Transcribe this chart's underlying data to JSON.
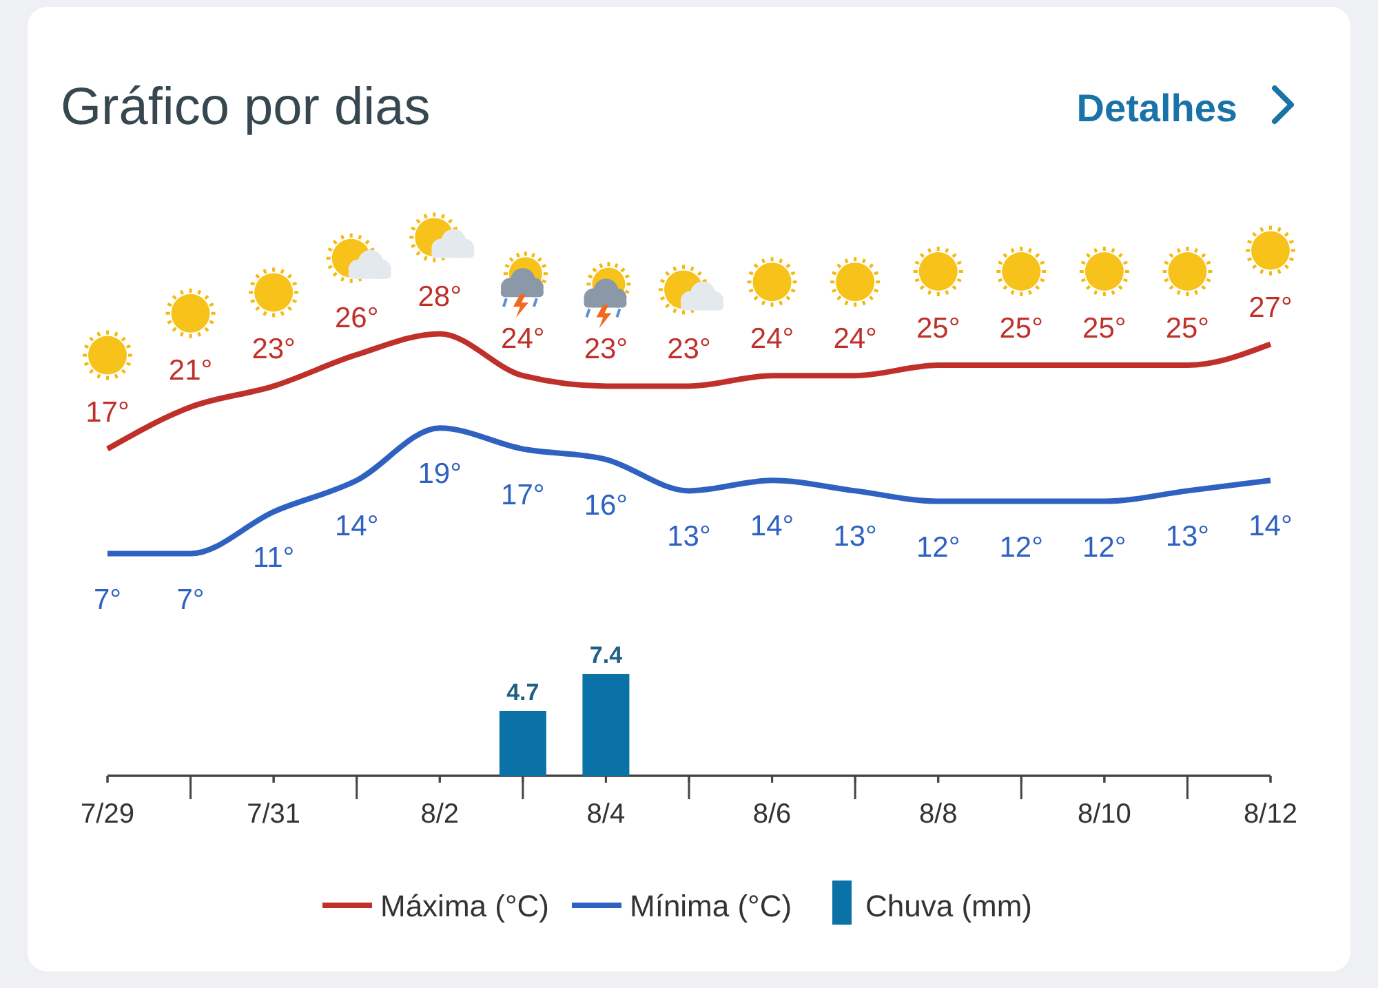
{
  "chart_data": [
    {
      "type": "line",
      "title": "Gráfico por dias",
      "annotations": [
        "Detalhes"
      ],
      "categories": [
        "7/29",
        null,
        "7/31",
        null,
        "8/2",
        null,
        "8/4",
        null,
        "8/6",
        null,
        "8/8",
        null,
        "8/10",
        null,
        "8/12"
      ],
      "series": [
        {
          "name": "Máxima (°C)",
          "color": "#c0302a",
          "values": [
            17,
            21,
            23,
            26,
            28,
            24,
            23,
            23,
            24,
            24,
            25,
            25,
            25,
            25,
            27
          ],
          "value_labels": [
            "17°",
            "21°",
            "23°",
            "26°",
            "28°",
            "24°",
            "23°",
            "23°",
            "24°",
            "24°",
            "25°",
            "25°",
            "25°",
            "25°",
            "27°"
          ]
        },
        {
          "name": "Mínima (°C)",
          "color": "#2f62c0",
          "values": [
            7,
            7,
            11,
            14,
            19,
            17,
            16,
            13,
            14,
            13,
            12,
            12,
            12,
            13,
            14
          ],
          "value_labels": [
            "7°",
            "7°",
            "11°",
            "14°",
            "19°",
            "17°",
            "16°",
            "13°",
            "14°",
            "13°",
            "12°",
            "12°",
            "12°",
            "13°",
            "14°"
          ]
        }
      ],
      "legend": "bottom",
      "marker": "none"
    },
    {
      "type": "bar",
      "categories": [
        null,
        null,
        null,
        null,
        null,
        null,
        null,
        null,
        null,
        null,
        null,
        null,
        null,
        null,
        null
      ],
      "series": [
        {
          "name": "Chuva (mm)",
          "color": "#0a72a6",
          "values": [
            null,
            null,
            null,
            null,
            null,
            4.7,
            7.4,
            null,
            null,
            null,
            null,
            null,
            null,
            null,
            null
          ],
          "value_labels": [
            null,
            null,
            null,
            null,
            null,
            "4.7",
            "7.4",
            null,
            null,
            null,
            null,
            null,
            null,
            null,
            null
          ]
        }
      ],
      "legend": "bottom"
    }
  ]
}
